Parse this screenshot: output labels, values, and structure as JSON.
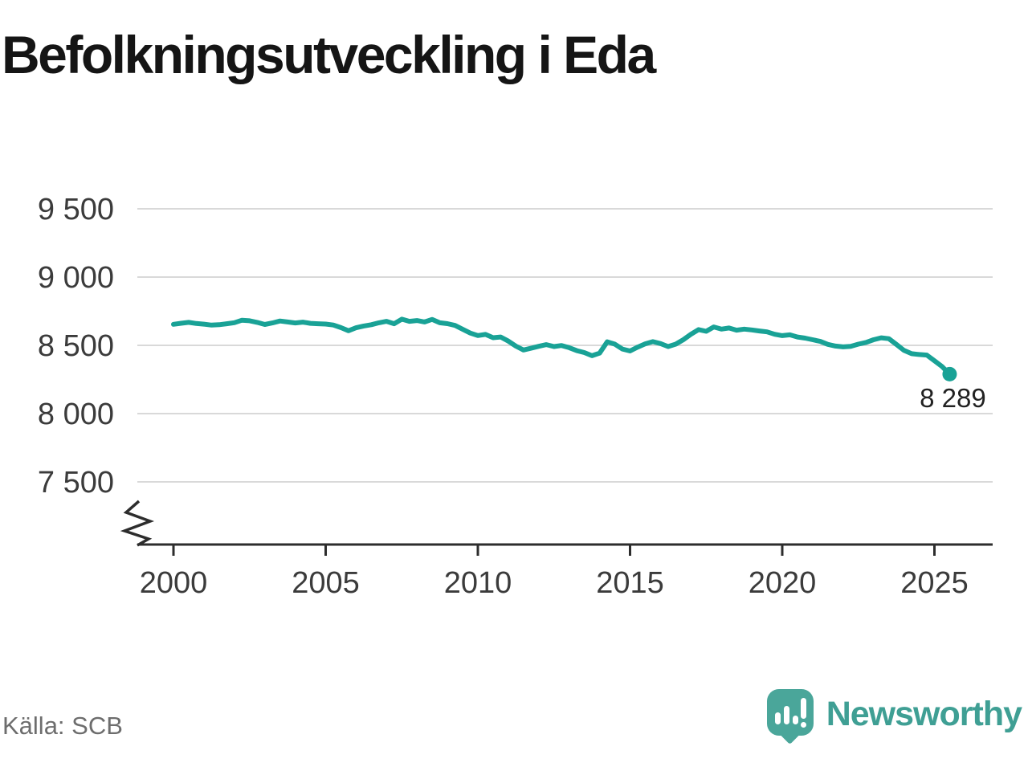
{
  "page": {
    "title": "Befolkningsutveckling i Eda"
  },
  "source": {
    "label": "Källa: SCB"
  },
  "branding": {
    "wordmark": "Newsworthy",
    "logo_icon": "newsworthy-speech-bubble-barchart-icon",
    "logo_color": "#4aa69a",
    "wordmark_color": "#3f9f94"
  },
  "chart_data": {
    "type": "line",
    "title": "Befolkningsutveckling i Eda",
    "xlabel": "",
    "ylabel": "",
    "ylim": [
      7350,
      9650
    ],
    "xlim": [
      1998.8,
      2026.9
    ],
    "grid": "horizontal",
    "axis_break": true,
    "legend": "none",
    "colors": {
      "line": "#19a296",
      "grid": "#d9d9d9",
      "axis": "#2d2d2d",
      "tick_label": "#3b3b3b",
      "end_label": "#222222"
    },
    "y_axis": {
      "ticks": [
        {
          "value": 9500,
          "label": "9 500"
        },
        {
          "value": 9000,
          "label": "9 000"
        },
        {
          "value": 8500,
          "label": "8 500"
        },
        {
          "value": 8000,
          "label": "8 000"
        },
        {
          "value": 7500,
          "label": "7 500"
        }
      ]
    },
    "x_axis": {
      "ticks": [
        {
          "value": 2000,
          "label": "2000"
        },
        {
          "value": 2005,
          "label": "2005"
        },
        {
          "value": 2010,
          "label": "2010"
        },
        {
          "value": 2015,
          "label": "2015"
        },
        {
          "value": 2020,
          "label": "2020"
        },
        {
          "value": 2025,
          "label": "2025"
        }
      ]
    },
    "end_label": {
      "text": "8 289",
      "value": 8289
    },
    "series": [
      {
        "points": [
          [
            2000.0,
            8654
          ],
          [
            2000.25,
            8662
          ],
          [
            2000.5,
            8668
          ],
          [
            2000.75,
            8660
          ],
          [
            2001.0,
            8655
          ],
          [
            2001.25,
            8648
          ],
          [
            2001.5,
            8651
          ],
          [
            2001.75,
            8658
          ],
          [
            2002.0,
            8666
          ],
          [
            2002.25,
            8684
          ],
          [
            2002.5,
            8680
          ],
          [
            2002.75,
            8668
          ],
          [
            2003.0,
            8653
          ],
          [
            2003.25,
            8664
          ],
          [
            2003.5,
            8678
          ],
          [
            2003.75,
            8671
          ],
          [
            2004.0,
            8664
          ],
          [
            2004.25,
            8670
          ],
          [
            2004.5,
            8661
          ],
          [
            2004.75,
            8658
          ],
          [
            2005.0,
            8656
          ],
          [
            2005.25,
            8649
          ],
          [
            2005.5,
            8630
          ],
          [
            2005.75,
            8607
          ],
          [
            2006.0,
            8629
          ],
          [
            2006.25,
            8642
          ],
          [
            2006.5,
            8651
          ],
          [
            2006.75,
            8665
          ],
          [
            2007.0,
            8676
          ],
          [
            2007.25,
            8658
          ],
          [
            2007.5,
            8692
          ],
          [
            2007.75,
            8676
          ],
          [
            2008.0,
            8682
          ],
          [
            2008.25,
            8671
          ],
          [
            2008.5,
            8690
          ],
          [
            2008.75,
            8665
          ],
          [
            2009.0,
            8659
          ],
          [
            2009.25,
            8646
          ],
          [
            2009.5,
            8618
          ],
          [
            2009.75,
            8590
          ],
          [
            2010.0,
            8572
          ],
          [
            2010.25,
            8580
          ],
          [
            2010.5,
            8556
          ],
          [
            2010.75,
            8561
          ],
          [
            2011.0,
            8531
          ],
          [
            2011.25,
            8494
          ],
          [
            2011.5,
            8466
          ],
          [
            2011.75,
            8479
          ],
          [
            2012.0,
            8493
          ],
          [
            2012.25,
            8505
          ],
          [
            2012.5,
            8491
          ],
          [
            2012.75,
            8499
          ],
          [
            2013.0,
            8483
          ],
          [
            2013.25,
            8461
          ],
          [
            2013.5,
            8447
          ],
          [
            2013.75,
            8424
          ],
          [
            2014.0,
            8443
          ],
          [
            2014.25,
            8526
          ],
          [
            2014.5,
            8509
          ],
          [
            2014.75,
            8473
          ],
          [
            2015.0,
            8459
          ],
          [
            2015.25,
            8487
          ],
          [
            2015.5,
            8511
          ],
          [
            2015.75,
            8527
          ],
          [
            2016.0,
            8513
          ],
          [
            2016.25,
            8491
          ],
          [
            2016.5,
            8509
          ],
          [
            2016.75,
            8541
          ],
          [
            2017.0,
            8581
          ],
          [
            2017.25,
            8615
          ],
          [
            2017.5,
            8603
          ],
          [
            2017.75,
            8635
          ],
          [
            2018.0,
            8619
          ],
          [
            2018.25,
            8627
          ],
          [
            2018.5,
            8611
          ],
          [
            2018.75,
            8619
          ],
          [
            2019.0,
            8613
          ],
          [
            2019.25,
            8605
          ],
          [
            2019.5,
            8599
          ],
          [
            2019.75,
            8581
          ],
          [
            2020.0,
            8571
          ],
          [
            2020.25,
            8577
          ],
          [
            2020.5,
            8561
          ],
          [
            2020.75,
            8553
          ],
          [
            2021.0,
            8541
          ],
          [
            2021.25,
            8529
          ],
          [
            2021.5,
            8507
          ],
          [
            2021.75,
            8495
          ],
          [
            2022.0,
            8489
          ],
          [
            2022.25,
            8493
          ],
          [
            2022.5,
            8509
          ],
          [
            2022.75,
            8521
          ],
          [
            2023.0,
            8541
          ],
          [
            2023.25,
            8555
          ],
          [
            2023.5,
            8549
          ],
          [
            2023.75,
            8507
          ],
          [
            2024.0,
            8463
          ],
          [
            2024.25,
            8439
          ],
          [
            2024.5,
            8433
          ],
          [
            2024.75,
            8429
          ],
          [
            2025.0,
            8387
          ],
          [
            2025.25,
            8345
          ],
          [
            2025.5,
            8289
          ]
        ]
      }
    ]
  }
}
